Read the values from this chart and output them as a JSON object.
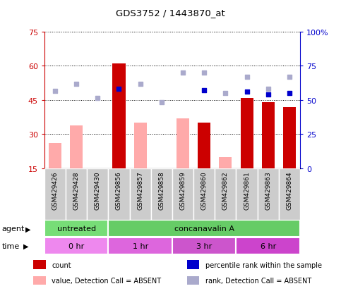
{
  "title": "GDS3752 / 1443870_at",
  "samples": [
    "GSM429426",
    "GSM429428",
    "GSM429430",
    "GSM429856",
    "GSM429857",
    "GSM429858",
    "GSM429859",
    "GSM429860",
    "GSM429862",
    "GSM429861",
    "GSM429863",
    "GSM429864"
  ],
  "count_bars": [
    null,
    null,
    null,
    61,
    null,
    null,
    null,
    35,
    null,
    46,
    44,
    42
  ],
  "value_bars": [
    26,
    34,
    15,
    null,
    35,
    14,
    37,
    null,
    20,
    null,
    null,
    null
  ],
  "rank_dots": [
    49,
    52,
    46,
    null,
    52,
    44,
    57,
    57,
    48,
    55,
    50,
    55
  ],
  "percentile_dots": [
    null,
    null,
    null,
    58,
    null,
    null,
    null,
    57,
    null,
    56,
    54,
    55
  ],
  "agent_groups": [
    {
      "label": "untreated",
      "start": 0,
      "end": 3,
      "color": "#77dd77"
    },
    {
      "label": "concanavalin A",
      "start": 3,
      "end": 12,
      "color": "#66cc66"
    }
  ],
  "time_groups": [
    {
      "label": "0 hr",
      "start": 0,
      "end": 3,
      "color": "#ee88ee"
    },
    {
      "label": "1 hr",
      "start": 3,
      "end": 6,
      "color": "#dd66dd"
    },
    {
      "label": "3 hr",
      "start": 6,
      "end": 9,
      "color": "#cc55cc"
    },
    {
      "label": "6 hr",
      "start": 9,
      "end": 12,
      "color": "#cc44cc"
    }
  ],
  "ylim_left": [
    15,
    75
  ],
  "ylim_right": [
    0,
    100
  ],
  "yticks_left": [
    15,
    30,
    45,
    60,
    75
  ],
  "yticks_right": [
    0,
    25,
    50,
    75,
    100
  ],
  "color_count": "#cc0000",
  "color_percentile": "#0000cc",
  "color_value": "#ffaaaa",
  "color_rank": "#aaaacc",
  "color_tick_left": "#cc0000",
  "color_tick_right": "#0000cc",
  "color_label_bg": "#cccccc",
  "legend_items": [
    {
      "color": "#cc0000",
      "label": "count"
    },
    {
      "color": "#0000cc",
      "label": "percentile rank within the sample"
    },
    {
      "color": "#ffaaaa",
      "label": "value, Detection Call = ABSENT"
    },
    {
      "color": "#aaaacc",
      "label": "rank, Detection Call = ABSENT"
    }
  ]
}
